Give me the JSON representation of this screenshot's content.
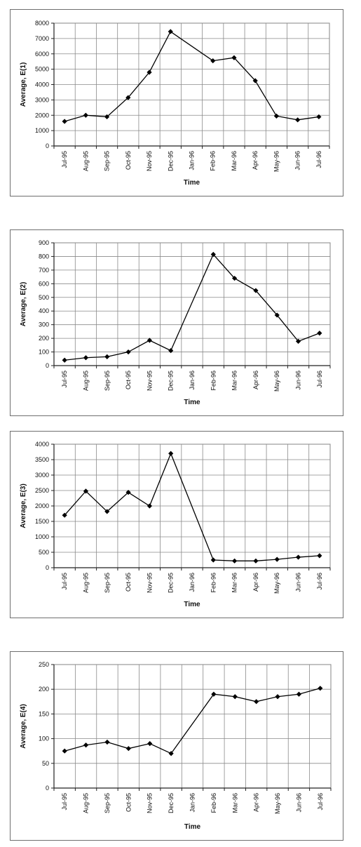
{
  "chart_data": [
    {
      "type": "line",
      "xlabel": "Time",
      "ylabel": "Average, E(1)",
      "ylim": [
        0,
        8000
      ],
      "yticks": [
        0,
        1000,
        2000,
        3000,
        4000,
        5000,
        6000,
        7000,
        8000
      ],
      "categories": [
        "Jul-95",
        "Aug-95",
        "Sep-95",
        "Oct-95",
        "Nov-95",
        "Dec-95",
        "Jan-96",
        "Feb-96",
        "Mar-96",
        "Apr-96",
        "May-96",
        "Jun-96",
        "Jul-96"
      ],
      "values": [
        1600,
        2000,
        1900,
        3150,
        4800,
        7450,
        null,
        5550,
        5750,
        4250,
        1950,
        1700,
        1900
      ],
      "grid": true,
      "marker": "diamond",
      "color": "#000000"
    },
    {
      "type": "line",
      "xlabel": "Time",
      "ylabel": "Average, E(2)",
      "ylim": [
        0,
        900
      ],
      "yticks": [
        0,
        100,
        200,
        300,
        400,
        500,
        600,
        700,
        800,
        900
      ],
      "categories": [
        "Jul-95",
        "Aug-95",
        "Sep-95",
        "Oct-95",
        "Nov-95",
        "Dec-95",
        "Jan-96",
        "Feb-96",
        "Mar-96",
        "Apr-96",
        "May-96",
        "Jun-96",
        "Jul-96"
      ],
      "values": [
        40,
        58,
        65,
        100,
        185,
        110,
        null,
        815,
        640,
        550,
        370,
        178,
        238
      ],
      "grid": true,
      "marker": "diamond",
      "color": "#000000"
    },
    {
      "type": "line",
      "xlabel": "Time",
      "ylabel": "Average, E(3)",
      "ylim": [
        0,
        4000
      ],
      "yticks": [
        0,
        500,
        1000,
        1500,
        2000,
        2500,
        3000,
        3500,
        4000
      ],
      "categories": [
        "Jul-95",
        "Aug-95",
        "Sep-95",
        "Oct-95",
        "Nov-95",
        "Dec-95",
        "Jan-96",
        "Feb-96",
        "Mar-96",
        "Apr-96",
        "May-96",
        "Jun-96",
        "Jul-96"
      ],
      "values": [
        1700,
        2480,
        1820,
        2440,
        2000,
        3700,
        null,
        250,
        220,
        220,
        270,
        340,
        390
      ],
      "grid": true,
      "marker": "diamond",
      "color": "#000000"
    },
    {
      "type": "line",
      "xlabel": "Time",
      "ylabel": "Average, E(4)",
      "ylim": [
        0,
        250
      ],
      "yticks": [
        0,
        50,
        100,
        150,
        200,
        250
      ],
      "categories": [
        "Jul-95",
        "Aug-95",
        "Sep-95",
        "Oct-95",
        "Nov-95",
        "Dec-95",
        "Jan-96",
        "Feb-96",
        "Mar-96",
        "Apr-96",
        "May-96",
        "Jun-96",
        "Jul-96"
      ],
      "values": [
        75,
        87,
        93,
        80,
        90,
        70,
        null,
        190,
        185,
        175,
        185,
        190,
        202
      ],
      "grid": true,
      "marker": "diamond",
      "color": "#000000"
    }
  ]
}
